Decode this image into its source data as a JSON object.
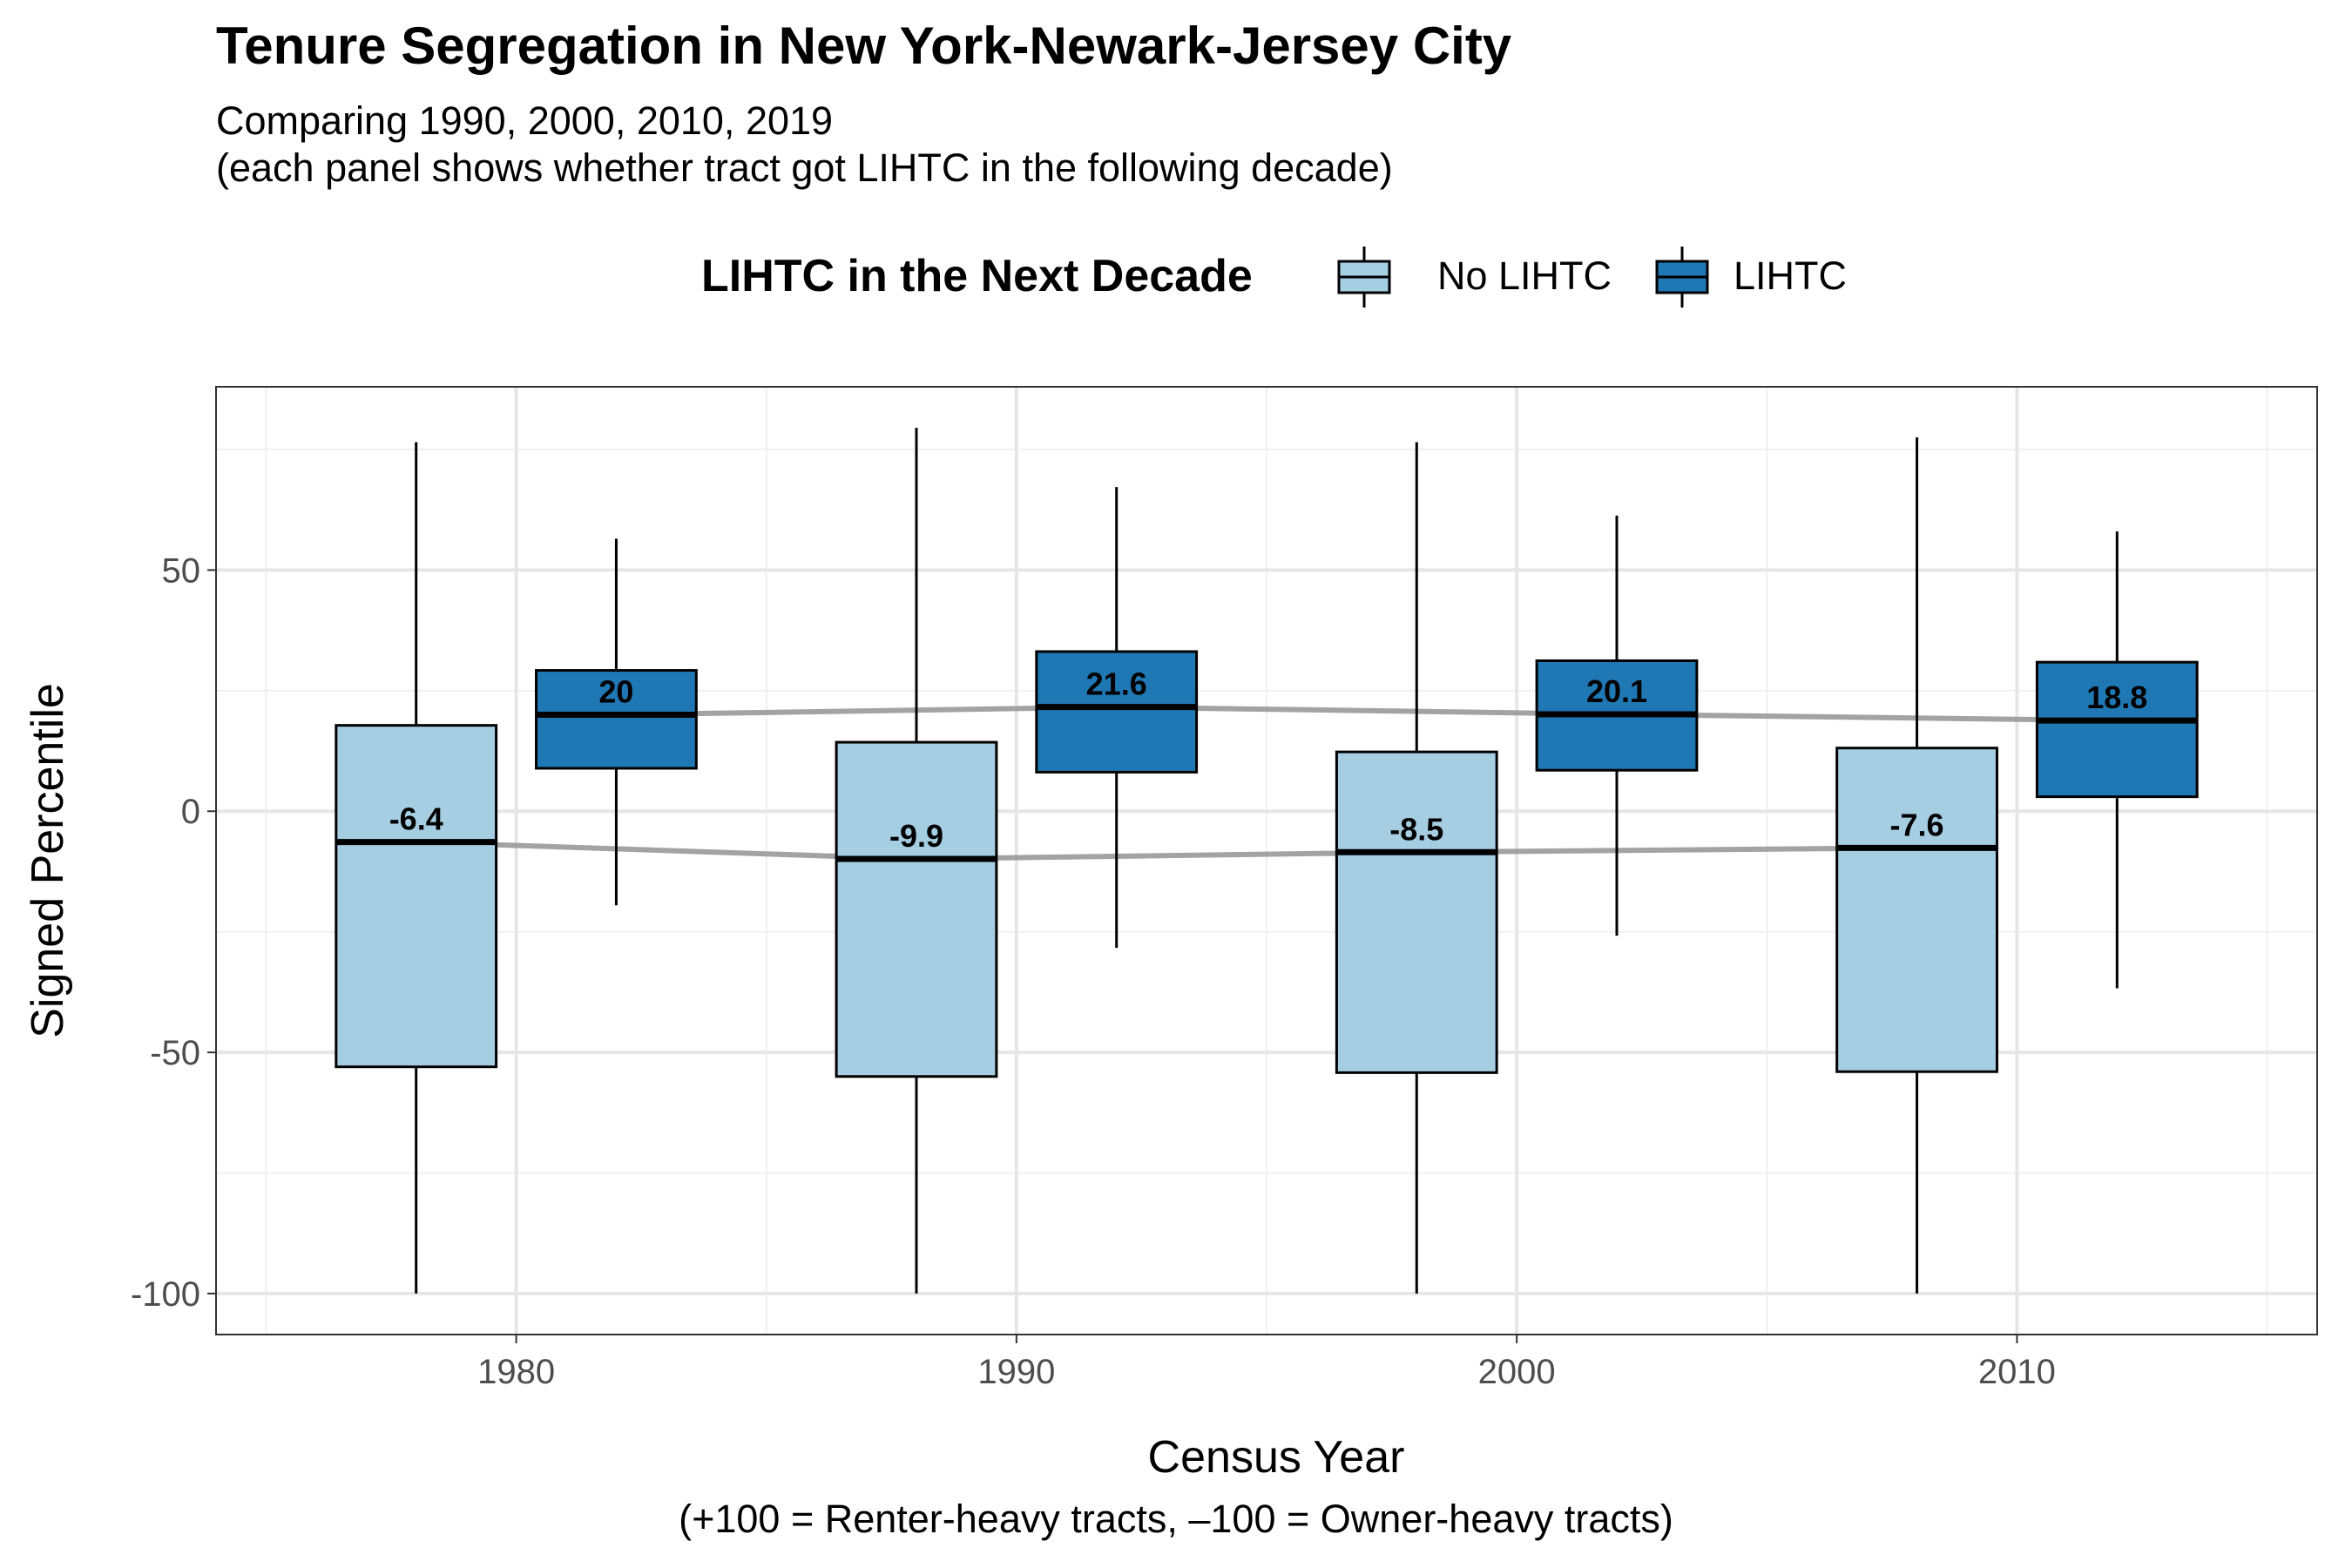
{
  "chart_data": {
    "type": "box",
    "title": "Tenure Segregation in New York-Newark-Jersey City",
    "subtitle": "Comparing 1990, 2000, 2010, 2019\n(each panel shows whether tract got LIHTC in the following decade)",
    "xlabel": "Census Year",
    "ylabel": "Signed Percentile",
    "caption": "(+100 = Renter-heavy tracts, –100 = Owner-heavy tracts)",
    "xlim": [
      1974,
      2016
    ],
    "ylim": [
      -108.5,
      88
    ],
    "x_ticks": [
      1980,
      1990,
      2000,
      2010
    ],
    "y_ticks": [
      -100,
      -50,
      0,
      50
    ],
    "y_minor_ticks": [
      -75,
      -25,
      25,
      75
    ],
    "grid": true,
    "legend": {
      "title": "LIHTC in the Next Decade",
      "position": "top",
      "items": [
        {
          "label": "No LIHTC",
          "color": "#a6cee3"
        },
        {
          "label": "LIHTC",
          "color": "#1f78b4"
        }
      ]
    },
    "series": [
      {
        "name": "No LIHTC",
        "color": "#a6cee3",
        "boxes": [
          {
            "x": 1980,
            "min": -100,
            "q1": -53,
            "median": -6.4,
            "q3": 17.8,
            "max": 76.5
          },
          {
            "x": 1990,
            "min": -100,
            "q1": -55,
            "median": -9.9,
            "q3": 14.3,
            "max": 79.5
          },
          {
            "x": 2000,
            "min": -100,
            "q1": -54.2,
            "median": -8.5,
            "q3": 12.3,
            "max": 76.5
          },
          {
            "x": 2010,
            "min": -100,
            "q1": -54,
            "median": -7.6,
            "q3": 13.1,
            "max": 77.5
          }
        ]
      },
      {
        "name": "LIHTC",
        "color": "#1f78b4",
        "boxes": [
          {
            "x": 1980,
            "min": -19.5,
            "q1": 8.9,
            "median": 20,
            "q3": 29.2,
            "max": 56.5
          },
          {
            "x": 1990,
            "min": -28.3,
            "q1": 8.1,
            "median": 21.6,
            "q3": 33.1,
            "max": 67.2
          },
          {
            "x": 2000,
            "min": -25.8,
            "q1": 8.5,
            "median": 20.1,
            "q3": 31.2,
            "max": 61.3
          },
          {
            "x": 2010,
            "min": -36.7,
            "q1": 3,
            "median": 18.8,
            "q3": 30.9,
            "max": 58
          }
        ]
      }
    ],
    "median_labels": {
      "No LIHTC": [
        "-6.4",
        "-9.9",
        "-8.5",
        "-7.6"
      ],
      "LIHTC": [
        "20",
        "21.6",
        "20.1",
        "18.8"
      ]
    },
    "trend_line_color": "#999999"
  }
}
